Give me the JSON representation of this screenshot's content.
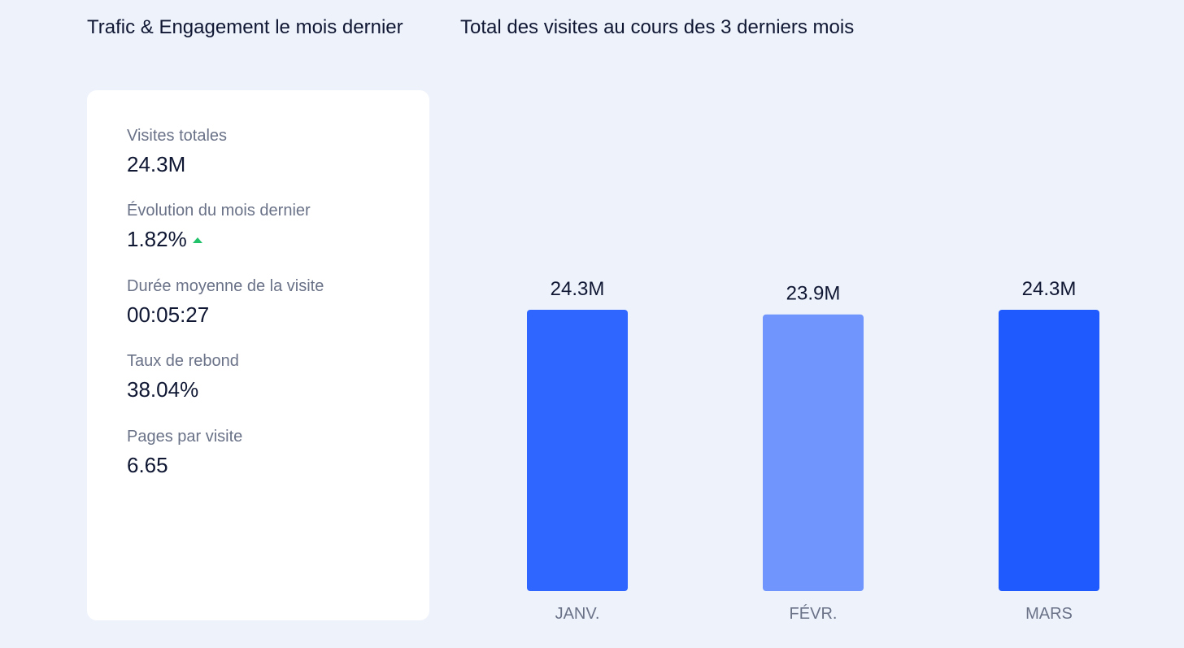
{
  "panel": {
    "title": "Trafic & Engagement le mois dernier",
    "stats": [
      {
        "label": "Visites totales",
        "value": "24.3M"
      },
      {
        "label": "Évolution du mois dernier",
        "value": "1.82%",
        "trend_icon": "triangle-up-icon",
        "trend_color": "#22c26b"
      },
      {
        "label": "Durée moyenne de la visite",
        "value": "00:05:27"
      },
      {
        "label": "Taux de rebond",
        "value": "38.04%"
      },
      {
        "label": "Pages par visite",
        "value": "6.65"
      }
    ]
  },
  "chart": {
    "title": "Total des visites au cours des 3 derniers mois"
  },
  "chart_data": {
    "type": "bar",
    "title": "Total des visites au cours des 3 derniers mois",
    "categories": [
      "JANV.",
      "FÉVR.",
      "MARS"
    ],
    "values": [
      24.3,
      23.9,
      24.3
    ],
    "value_labels": [
      "24.3M",
      "23.9M",
      "24.3M"
    ],
    "colors": [
      "#2e66ff",
      "#7095fc",
      "#1f5aff"
    ],
    "unit": "M",
    "grid": false,
    "legend": "none"
  }
}
